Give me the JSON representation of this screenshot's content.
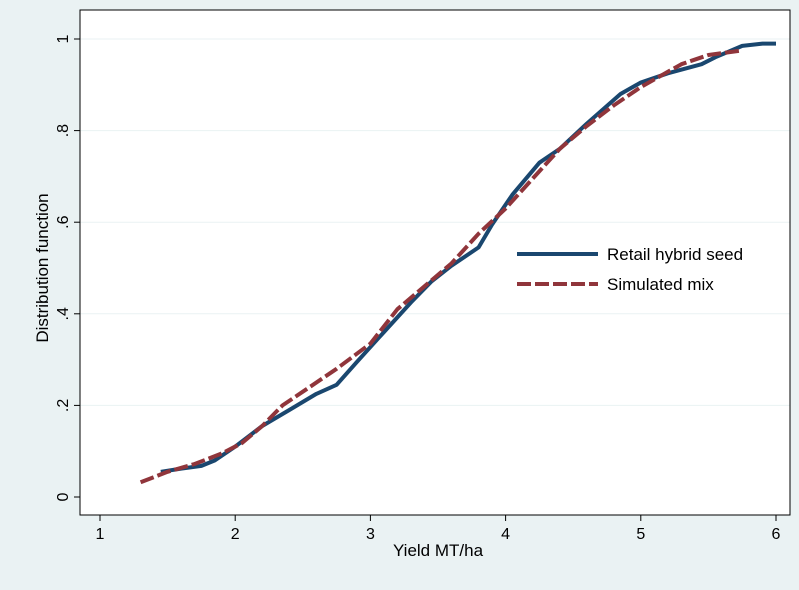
{
  "chart_data": {
    "type": "line",
    "title": "",
    "xlabel": "Yield MT/ha",
    "ylabel": "Distribution function",
    "xlim": [
      1,
      6
    ],
    "ylim": [
      0,
      1
    ],
    "x_ticks": [
      1,
      2,
      3,
      4,
      5,
      6
    ],
    "x_tick_labels": [
      "1",
      "2",
      "3",
      "4",
      "5",
      "6"
    ],
    "y_ticks": [
      0,
      0.2,
      0.4,
      0.6,
      0.8,
      1
    ],
    "y_tick_labels": [
      "0",
      ".2",
      ".4",
      ".6",
      ".8",
      "1"
    ],
    "grid": "horizontal",
    "legend_position": "right",
    "series": [
      {
        "name": "Retail hybrid seed",
        "color": "#1a476f",
        "style": "solid",
        "x": [
          1.45,
          1.6,
          1.75,
          1.85,
          2.0,
          2.2,
          2.4,
          2.6,
          2.75,
          2.9,
          3.1,
          3.3,
          3.45,
          3.6,
          3.8,
          3.9,
          4.05,
          4.25,
          4.4,
          4.6,
          4.85,
          5.0,
          5.2,
          5.45,
          5.55,
          5.75,
          5.9,
          6.0
        ],
        "y": [
          0.055,
          0.062,
          0.068,
          0.08,
          0.11,
          0.155,
          0.19,
          0.225,
          0.245,
          0.295,
          0.36,
          0.425,
          0.47,
          0.505,
          0.545,
          0.595,
          0.66,
          0.73,
          0.76,
          0.815,
          0.88,
          0.905,
          0.925,
          0.945,
          0.96,
          0.985,
          0.99,
          0.99
        ]
      },
      {
        "name": "Simulated mix",
        "color": "#90353b",
        "style": "dashed",
        "x": [
          1.3,
          1.5,
          1.7,
          1.9,
          2.05,
          2.2,
          2.35,
          2.5,
          2.75,
          3.0,
          3.2,
          3.4,
          3.6,
          3.8,
          4.0,
          4.2,
          4.4,
          4.6,
          4.8,
          5.0,
          5.15,
          5.3,
          5.5,
          5.75
        ],
        "y": [
          0.032,
          0.055,
          0.072,
          0.095,
          0.118,
          0.155,
          0.2,
          0.23,
          0.28,
          0.335,
          0.41,
          0.46,
          0.51,
          0.575,
          0.63,
          0.695,
          0.76,
          0.81,
          0.855,
          0.895,
          0.92,
          0.945,
          0.965,
          0.975
        ]
      }
    ]
  }
}
